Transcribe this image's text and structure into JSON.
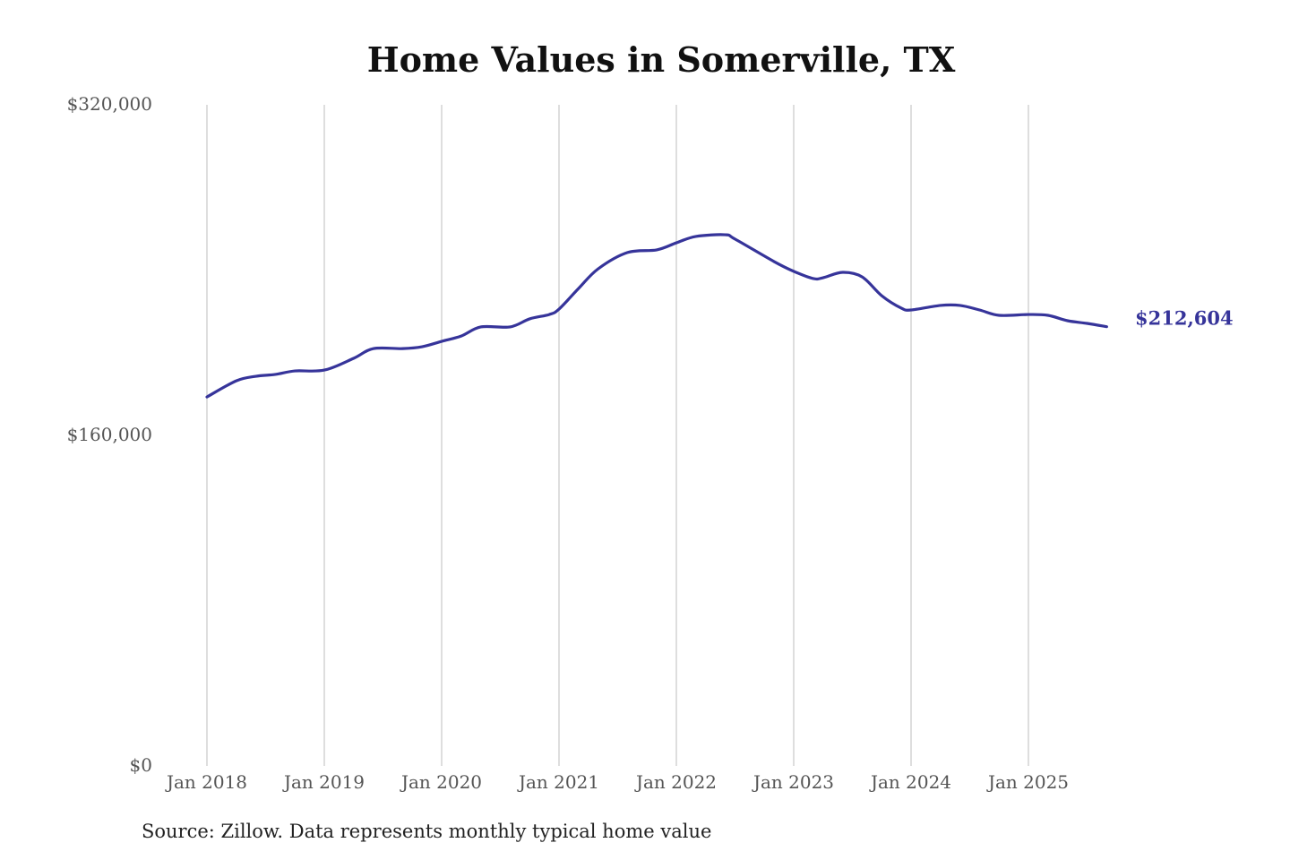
{
  "chart_data": {
    "type": "line",
    "title": "Home Values in Somerville, TX",
    "source": "Source: Zillow. Data represents monthly typical home value",
    "xlabel": "",
    "ylabel": "",
    "ylim": [
      0,
      320000
    ],
    "yticks": [
      0,
      160000,
      320000
    ],
    "ytick_labels": [
      "$0",
      "$160,000",
      "$320,000"
    ],
    "xticks": [
      "2018-01",
      "2019-01",
      "2020-01",
      "2021-01",
      "2022-01",
      "2023-01",
      "2024-01",
      "2025-01"
    ],
    "xtick_labels": [
      "Jan 2018",
      "Jan 2019",
      "Jan 2020",
      "Jan 2021",
      "Jan 2022",
      "Jan 2023",
      "Jan 2024",
      "Jan 2025"
    ],
    "grid": "vertical",
    "line_color": "#36349a",
    "end_label": "$212,604",
    "series": [
      {
        "name": "Typical home value",
        "points": [
          [
            "2018-01",
            178600
          ],
          [
            "2018-04",
            186400
          ],
          [
            "2018-06",
            188600
          ],
          [
            "2018-08",
            189500
          ],
          [
            "2018-10",
            191200
          ],
          [
            "2019-01",
            191600
          ],
          [
            "2019-04",
            197300
          ],
          [
            "2019-06",
            202000
          ],
          [
            "2019-09",
            202000
          ],
          [
            "2019-11",
            202900
          ],
          [
            "2020-01",
            205500
          ],
          [
            "2020-03",
            208100
          ],
          [
            "2020-05",
            212500
          ],
          [
            "2020-08",
            212500
          ],
          [
            "2020-10",
            216400
          ],
          [
            "2020-12",
            218500
          ],
          [
            "2021-01",
            221100
          ],
          [
            "2021-03",
            231100
          ],
          [
            "2021-05",
            240600
          ],
          [
            "2021-08",
            248500
          ],
          [
            "2021-11",
            249800
          ],
          [
            "2022-01",
            253200
          ],
          [
            "2022-03",
            256300
          ],
          [
            "2022-06",
            257100
          ],
          [
            "2022-07",
            255000
          ],
          [
            "2022-11",
            244100
          ],
          [
            "2023-01",
            239400
          ],
          [
            "2023-03",
            235900
          ],
          [
            "2023-04",
            236300
          ],
          [
            "2023-06",
            238900
          ],
          [
            "2023-08",
            236700
          ],
          [
            "2023-10",
            227600
          ],
          [
            "2023-12",
            221600
          ],
          [
            "2024-01",
            220700
          ],
          [
            "2024-04",
            222900
          ],
          [
            "2024-06",
            222900
          ],
          [
            "2024-08",
            220700
          ],
          [
            "2024-10",
            218100
          ],
          [
            "2025-01",
            218500
          ],
          [
            "2025-03",
            218100
          ],
          [
            "2025-05",
            215500
          ],
          [
            "2025-07",
            214200
          ],
          [
            "2025-09",
            212604
          ]
        ]
      }
    ]
  }
}
